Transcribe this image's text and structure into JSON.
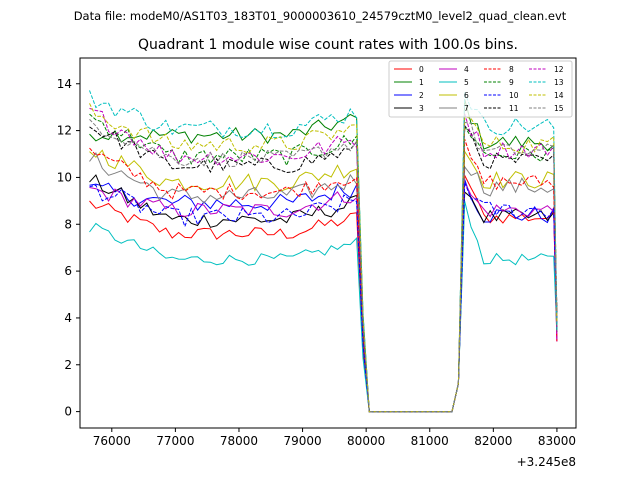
{
  "chart_data": {
    "type": "line",
    "suptitle": "Data file: modeM0/AS1T03_183T01_9000003610_24579cztM0_level2_quad_clean.evt",
    "title": "Quadrant 1 module wise count rates with 100.0s bins.",
    "xlabel": "",
    "ylabel": "",
    "x_offset_label": "+3.245e8",
    "xlim": [
      75500,
      83300
    ],
    "ylim": [
      -0.7,
      15.1
    ],
    "xticks": [
      76000,
      77000,
      78000,
      79000,
      80000,
      81000,
      82000,
      83000
    ],
    "yticks": [
      0,
      2,
      4,
      6,
      8,
      10,
      12,
      14
    ],
    "legend_position": "top-right",
    "segments": {
      "gti1": [
        75650,
        79850
      ],
      "dip": [
        79950,
        80050,
        81350,
        81450
      ],
      "gti2": [
        81550,
        82950
      ],
      "bin": 100
    },
    "series": [
      {
        "name": "0",
        "color": "#ff0000",
        "dash": "solid",
        "level1": 7.6,
        "level2": 8.3,
        "start": 8.9,
        "peak": 10.2,
        "amp": 0.3
      },
      {
        "name": "1",
        "color": "#008000",
        "dash": "solid",
        "level1": 11.8,
        "level2": 11.5,
        "start": 11.9,
        "peak": 13.2,
        "amp": 0.35
      },
      {
        "name": "2",
        "color": "#0000ff",
        "dash": "solid",
        "level1": 8.9,
        "level2": 8.4,
        "start": 9.5,
        "peak": 10.0,
        "amp": 0.4
      },
      {
        "name": "3",
        "color": "#000000",
        "dash": "solid",
        "level1": 8.2,
        "level2": 8.3,
        "start": 9.9,
        "peak": 9.7,
        "amp": 0.35
      },
      {
        "name": "4",
        "color": "#bf00bf",
        "dash": "solid",
        "level1": 8.6,
        "level2": 8.6,
        "start": 9.5,
        "peak": 9.6,
        "amp": 0.35
      },
      {
        "name": "5",
        "color": "#00bfbf",
        "dash": "solid",
        "level1": 6.5,
        "level2": 6.5,
        "start": 7.9,
        "peak": 9.0,
        "amp": 0.25
      },
      {
        "name": "6",
        "color": "#bfbf00",
        "dash": "solid",
        "level1": 9.8,
        "level2": 9.9,
        "start": 11.2,
        "peak": 11.2,
        "amp": 0.4
      },
      {
        "name": "7",
        "color": "#808080",
        "dash": "solid",
        "level1": 9.2,
        "level2": 9.6,
        "start": 10.8,
        "peak": 10.8,
        "amp": 0.4
      },
      {
        "name": "8",
        "color": "#ff0000",
        "dash": "dashed",
        "level1": 9.4,
        "level2": 9.8,
        "start": 11.1,
        "peak": 11.3,
        "amp": 0.35
      },
      {
        "name": "9",
        "color": "#008000",
        "dash": "dashed",
        "level1": 10.9,
        "level2": 11.0,
        "start": 12.6,
        "peak": 12.4,
        "amp": 0.4
      },
      {
        "name": "10",
        "color": "#0000ff",
        "dash": "dashed",
        "level1": 8.3,
        "level2": 8.6,
        "start": 9.6,
        "peak": 9.8,
        "amp": 0.4
      },
      {
        "name": "11",
        "color": "#000000",
        "dash": "dashed",
        "level1": 10.5,
        "level2": 10.7,
        "start": 12.2,
        "peak": 12.4,
        "amp": 0.35
      },
      {
        "name": "12",
        "color": "#bf00bf",
        "dash": "dashed",
        "level1": 10.9,
        "level2": 11.2,
        "start": 12.8,
        "peak": 12.7,
        "amp": 0.4
      },
      {
        "name": "13",
        "color": "#00bfbf",
        "dash": "dashed",
        "level1": 12.1,
        "level2": 12.2,
        "start": 13.4,
        "peak": 13.8,
        "amp": 0.4
      },
      {
        "name": "14",
        "color": "#bfbf00",
        "dash": "dashed",
        "level1": 11.4,
        "level2": 11.4,
        "start": 12.8,
        "peak": 13.0,
        "amp": 0.4
      },
      {
        "name": "15",
        "color": "#808080",
        "dash": "dashed",
        "level1": 10.8,
        "level2": 11.1,
        "start": 12.4,
        "peak": 12.5,
        "amp": 0.35
      }
    ]
  }
}
